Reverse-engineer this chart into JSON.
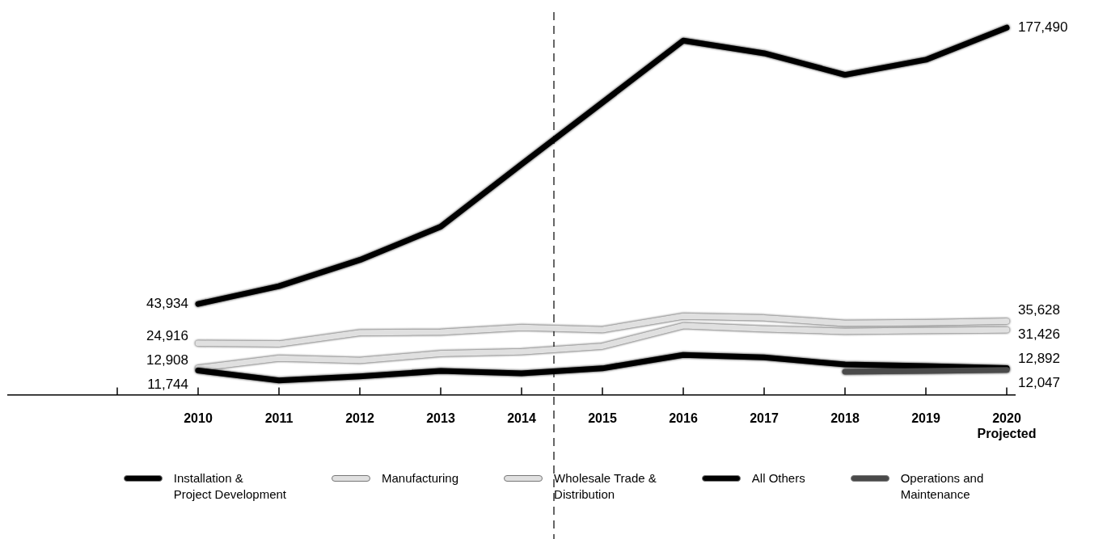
{
  "chart_data": {
    "type": "line",
    "x": [
      2010,
      2011,
      2012,
      2013,
      2014,
      2015,
      2016,
      2017,
      2018,
      2019,
      2020
    ],
    "xlim": [
      2007.65,
      2020.1
    ],
    "xticks": [
      {
        "value": 2009,
        "label": null
      },
      2010,
      2011,
      2012,
      2013,
      2014,
      2015,
      2016,
      2017,
      2018,
      2019,
      {
        "value": 2020,
        "label": "2020\nProjected"
      }
    ],
    "ylim": [
      0,
      185000
    ],
    "legend": "bottom",
    "marker": "none",
    "ref_lines": [
      {
        "axis": "x",
        "value": 2014.4,
        "line_style": "dashed"
      }
    ],
    "series": [
      {
        "name": "Installation &\nProject Development",
        "color": "#000000",
        "values": [
          43934,
          52500,
          65200,
          81300,
          111500,
          141300,
          171200,
          165100,
          154700,
          162000,
          177490
        ],
        "value_labels": [
          "43,934",
          null,
          null,
          null,
          null,
          null,
          null,
          null,
          null,
          null,
          "177,490"
        ]
      },
      {
        "name": "Manufacturing",
        "color": "#e0e0e0",
        "values": [
          24916,
          24600,
          30000,
          30300,
          32600,
          31500,
          38000,
          37200,
          34600,
          34900,
          35628
        ],
        "value_labels": [
          "24,916",
          null,
          null,
          null,
          null,
          null,
          null,
          null,
          null,
          null,
          "35,628"
        ]
      },
      {
        "name": "Wholesale Trade &\nDistribution",
        "color": "#e0e0e0",
        "values": [
          12908,
          17700,
          16600,
          20000,
          20800,
          23500,
          33400,
          31900,
          30700,
          31100,
          31426
        ],
        "value_labels": [
          "12,908",
          null,
          null,
          null,
          null,
          null,
          null,
          null,
          null,
          null,
          "31,426"
        ]
      },
      {
        "name": "All Others",
        "color": "#000000",
        "values": [
          11744,
          7000,
          8900,
          11600,
          10400,
          12800,
          19300,
          18100,
          14700,
          13900,
          12892
        ],
        "value_labels": [
          "11,744",
          null,
          null,
          null,
          null,
          null,
          null,
          null,
          null,
          null,
          "12,892"
        ]
      },
      {
        "name": "Operations and\nMaintenance",
        "color": "#4a4a4a",
        "values": [
          null,
          null,
          null,
          null,
          null,
          null,
          null,
          null,
          11200,
          11600,
          12047
        ],
        "value_labels": [
          null,
          null,
          null,
          null,
          null,
          null,
          null,
          null,
          null,
          null,
          "12,047"
        ]
      }
    ]
  }
}
